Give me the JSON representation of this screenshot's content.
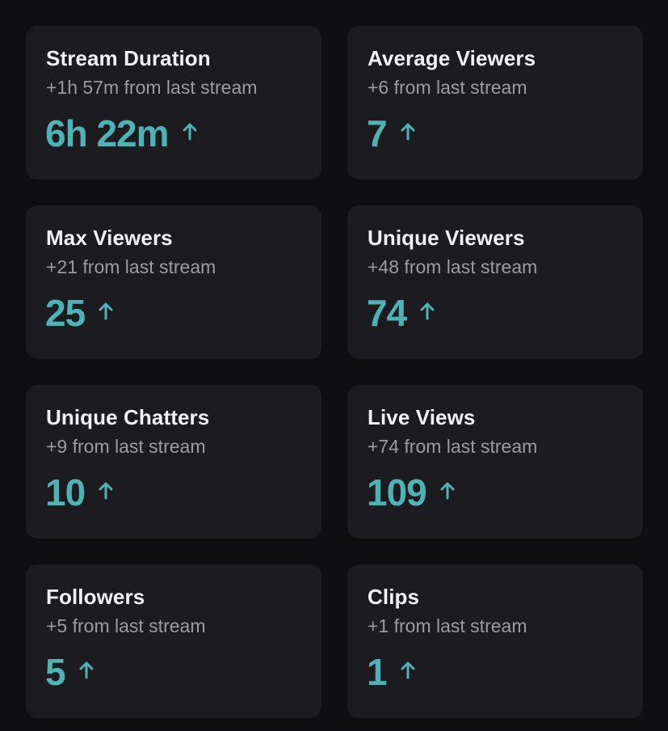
{
  "stats": [
    {
      "title": "Stream Duration",
      "delta": "+1h 57m from last stream",
      "value": "6h 22m",
      "trend_icon": "arrow-up-icon"
    },
    {
      "title": "Average Viewers",
      "delta": "+6 from last stream",
      "value": "7",
      "trend_icon": "arrow-up-icon"
    },
    {
      "title": "Max Viewers",
      "delta": "+21 from last stream",
      "value": "25",
      "trend_icon": "arrow-up-icon"
    },
    {
      "title": "Unique Viewers",
      "delta": "+48 from last stream",
      "value": "74",
      "trend_icon": "arrow-up-icon"
    },
    {
      "title": "Unique Chatters",
      "delta": "+9 from last stream",
      "value": "10",
      "trend_icon": "arrow-up-icon"
    },
    {
      "title": "Live Views",
      "delta": "+74 from last stream",
      "value": "109",
      "trend_icon": "arrow-up-icon"
    },
    {
      "title": "Followers",
      "delta": "+5 from last stream",
      "value": "5",
      "trend_icon": "arrow-up-icon"
    },
    {
      "title": "Clips",
      "delta": "+1 from last stream",
      "value": "1",
      "trend_icon": "arrow-up-icon"
    }
  ],
  "colors": {
    "background": "#0f0f11",
    "card": "#1c1c20",
    "title": "#f1f1f3",
    "delta": "#9b9ba1",
    "accent": "#4fb3b5"
  }
}
